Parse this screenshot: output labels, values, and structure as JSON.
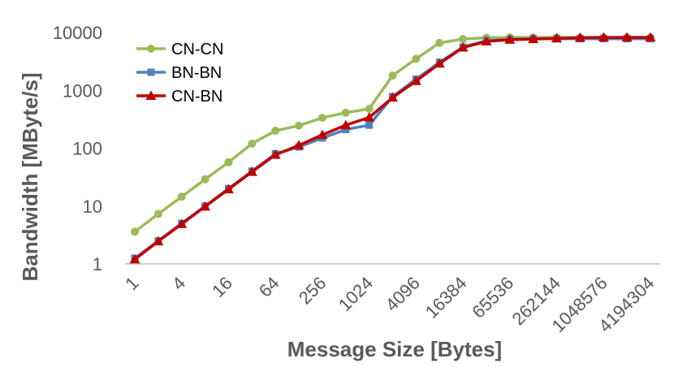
{
  "chart_data": {
    "type": "line",
    "xlabel": "Message Size [Bytes]",
    "ylabel": "Bandwidth [MByte/s]",
    "y_scale": "log",
    "ylim": [
      1,
      10000
    ],
    "y_ticks": [
      "1",
      "10",
      "100",
      "1000",
      "10000"
    ],
    "x_tick_labels": [
      "1",
      "4",
      "16",
      "64",
      "256",
      "1024",
      "4096",
      "16384",
      "65536",
      "262144",
      "1048576",
      "4194304"
    ],
    "x": [
      1,
      2,
      4,
      8,
      16,
      32,
      64,
      128,
      256,
      512,
      1024,
      2048,
      4096,
      8192,
      16384,
      32768,
      65536,
      131072,
      262144,
      524288,
      1048576,
      2097152,
      4194304
    ],
    "grid": false,
    "legend_position": "top-left",
    "series": [
      {
        "name": "CN-CN",
        "color": "#9BBB59",
        "marker": "circle",
        "values": [
          3.6,
          7.3,
          14.5,
          29,
          57,
          120,
          200,
          245,
          335,
          410,
          480,
          1800,
          3500,
          6600,
          7700,
          8100,
          8200,
          8200,
          8200,
          8200,
          8200,
          8200,
          8200
        ]
      },
      {
        "name": "BN-BN",
        "color": "#4F81BD",
        "marker": "square",
        "values": [
          1.25,
          2.5,
          5,
          10,
          20,
          40,
          80,
          105,
          150,
          210,
          250,
          780,
          1560,
          3050,
          5600,
          7200,
          7600,
          7800,
          7800,
          7800,
          7800,
          7800,
          7800
        ]
      },
      {
        "name": "CN-BN",
        "color": "#C00000",
        "marker": "triangle",
        "values": [
          1.2,
          2.45,
          4.9,
          9.8,
          19.5,
          39,
          77,
          112,
          170,
          250,
          340,
          750,
          1450,
          2900,
          5500,
          7000,
          7500,
          7700,
          7900,
          8100,
          8200,
          8200,
          8200
        ]
      }
    ]
  }
}
